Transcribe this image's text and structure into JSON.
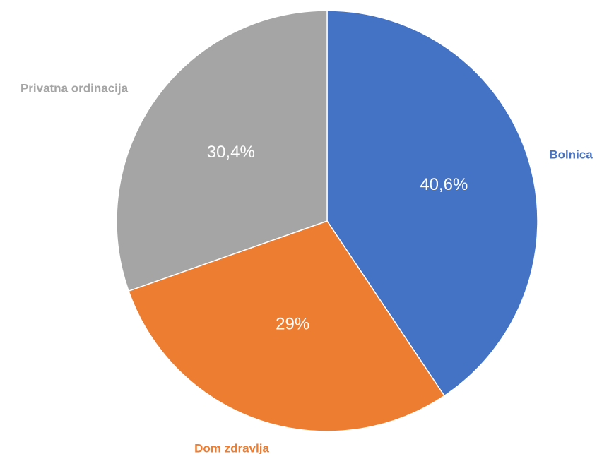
{
  "chart_data": {
    "type": "pie",
    "title": "",
    "slices": [
      {
        "category": "Bolnica",
        "value": 40.6,
        "label": "40,6%",
        "color": "#4472C4"
      },
      {
        "category": "Dom zdravlja",
        "value": 29.0,
        "label": "29%",
        "color": "#ED7D31"
      },
      {
        "category": "Privatna ordinacija",
        "value": 30.4,
        "label": "30,4%",
        "color": "#A5A5A5"
      }
    ],
    "start_angle_deg": 0,
    "direction": "clockwise",
    "labels_outside": true
  }
}
